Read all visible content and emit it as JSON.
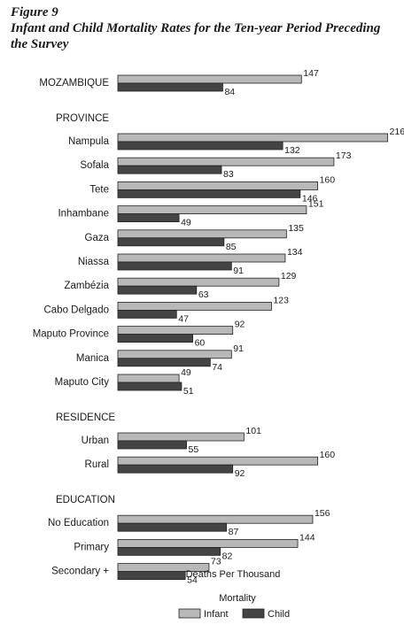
{
  "figure_label": "Figure 9",
  "figure_title": "Infant and Child Mortality Rates for the Ten-year Period Preceding the Survey",
  "colors": {
    "infant": "#b8b8b8",
    "child": "#444444",
    "bar_outline": "#222222"
  },
  "chart_data": {
    "type": "bar",
    "orientation": "horizontal",
    "xlabel": "Deaths Per Thousand",
    "legend_title": "Mortality",
    "legend_position": "bottom",
    "grid": false,
    "xlim": [
      0,
      216
    ],
    "series": [
      {
        "name": "Infant",
        "key": "infant"
      },
      {
        "name": "Child",
        "key": "child"
      }
    ],
    "groups": [
      {
        "section": "",
        "rows": [
          {
            "label": "MOZAMBIQUE",
            "infant": 147,
            "child": 84
          }
        ]
      },
      {
        "section": "PROVINCE",
        "rows": [
          {
            "label": "Nampula",
            "infant": 216,
            "child": 132
          },
          {
            "label": "Sofala",
            "infant": 173,
            "child": 83
          },
          {
            "label": "Tete",
            "infant": 160,
            "child": 146
          },
          {
            "label": "Inhambane",
            "infant": 151,
            "child": 49
          },
          {
            "label": "Gaza",
            "infant": 135,
            "child": 85
          },
          {
            "label": "Niassa",
            "infant": 134,
            "child": 91
          },
          {
            "label": "Zambézia",
            "infant": 129,
            "child": 63
          },
          {
            "label": "Cabo Delgado",
            "infant": 123,
            "child": 47
          },
          {
            "label": "Maputo Province",
            "infant": 92,
            "child": 60
          },
          {
            "label": "Manica",
            "infant": 91,
            "child": 74
          },
          {
            "label": "Maputo City",
            "infant": 49,
            "child": 51
          }
        ]
      },
      {
        "section": "RESIDENCE",
        "rows": [
          {
            "label": "Urban",
            "infant": 101,
            "child": 55
          },
          {
            "label": "Rural",
            "infant": 160,
            "child": 92
          }
        ]
      },
      {
        "section": "EDUCATION",
        "rows": [
          {
            "label": "No Education",
            "infant": 156,
            "child": 87
          },
          {
            "label": "Primary",
            "infant": 144,
            "child": 82
          },
          {
            "label": "Secondary +",
            "infant": 73,
            "child": 54
          }
        ]
      }
    ]
  }
}
